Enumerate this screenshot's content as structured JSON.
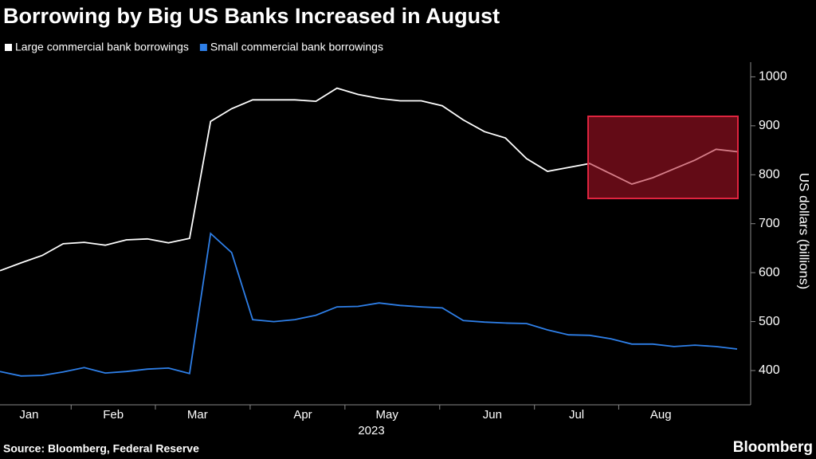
{
  "chart_data": {
    "type": "line",
    "title": "Borrowing by Big US Banks Increased in August",
    "source": "Source: Bloomberg, Federal Reserve",
    "brand": "Bloomberg",
    "x_label": "2023",
    "y_label": "US dollars (billions)",
    "categories": [
      null,
      "Jan",
      null,
      null,
      null,
      "Feb",
      null,
      null,
      null,
      "Mar",
      null,
      null,
      null,
      null,
      "Apr",
      null,
      null,
      null,
      "May",
      null,
      null,
      null,
      null,
      "Jun",
      null,
      null,
      null,
      "Jul",
      null,
      null,
      null,
      "Aug",
      null,
      null,
      null,
      null
    ],
    "series": [
      {
        "name": "Large commercial bank borrowings",
        "color": "#ffffff",
        "values": [
          604,
          620,
          635,
          659,
          662,
          656,
          667,
          669,
          661,
          670,
          909,
          935,
          953,
          953,
          953,
          950,
          977,
          964,
          956,
          951,
          951,
          941,
          912,
          888,
          875,
          833,
          807,
          815,
          823,
          802,
          781,
          794,
          812,
          830,
          852,
          847
        ]
      },
      {
        "name": "Small commercial bank borrowings",
        "color": "#2e7fe8",
        "values": [
          398,
          389,
          390,
          397,
          406,
          395,
          398,
          403,
          405,
          394,
          680,
          641,
          504,
          500,
          504,
          513,
          530,
          531,
          538,
          533,
          530,
          528,
          502,
          499,
          497,
          496,
          483,
          473,
          472,
          465,
          454,
          454,
          449,
          452,
          449,
          444
        ]
      }
    ],
    "ylim": [
      330,
      1030
    ],
    "yticks": [
      400,
      500,
      600,
      700,
      800,
      900,
      1000
    ],
    "grid": false
  }
}
